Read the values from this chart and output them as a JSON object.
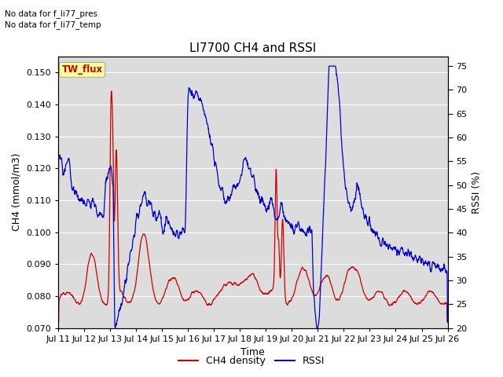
{
  "title": "LI7700 CH4 and RSSI",
  "xlabel": "Time",
  "ylabel_left": "CH4 (mmol/m3)",
  "ylabel_right": "RSSI (%)",
  "annotation_line1": "No data for f_li77_pres",
  "annotation_line2": "No data for f_li77_temp",
  "legend_box_label": "TW_flux",
  "legend_entries": [
    "CH4 density",
    "RSSI"
  ],
  "line_colors": [
    "#cc0000",
    "#0000cc"
  ],
  "ylim_left": [
    0.07,
    0.155
  ],
  "ylim_right": [
    20,
    77
  ],
  "yticks_left": [
    0.07,
    0.08,
    0.09,
    0.1,
    0.11,
    0.12,
    0.13,
    0.14,
    0.15
  ],
  "yticks_right": [
    20,
    25,
    30,
    35,
    40,
    45,
    50,
    55,
    60,
    65,
    70,
    75
  ],
  "plot_bg_color": "#dcdcdc",
  "title_fontsize": 11,
  "label_fontsize": 9,
  "tick_fontsize": 8,
  "legend_box_facecolor": "#ffff99",
  "legend_box_edgecolor": "#aaaaaa",
  "legend_box_text_color": "#cc0000"
}
